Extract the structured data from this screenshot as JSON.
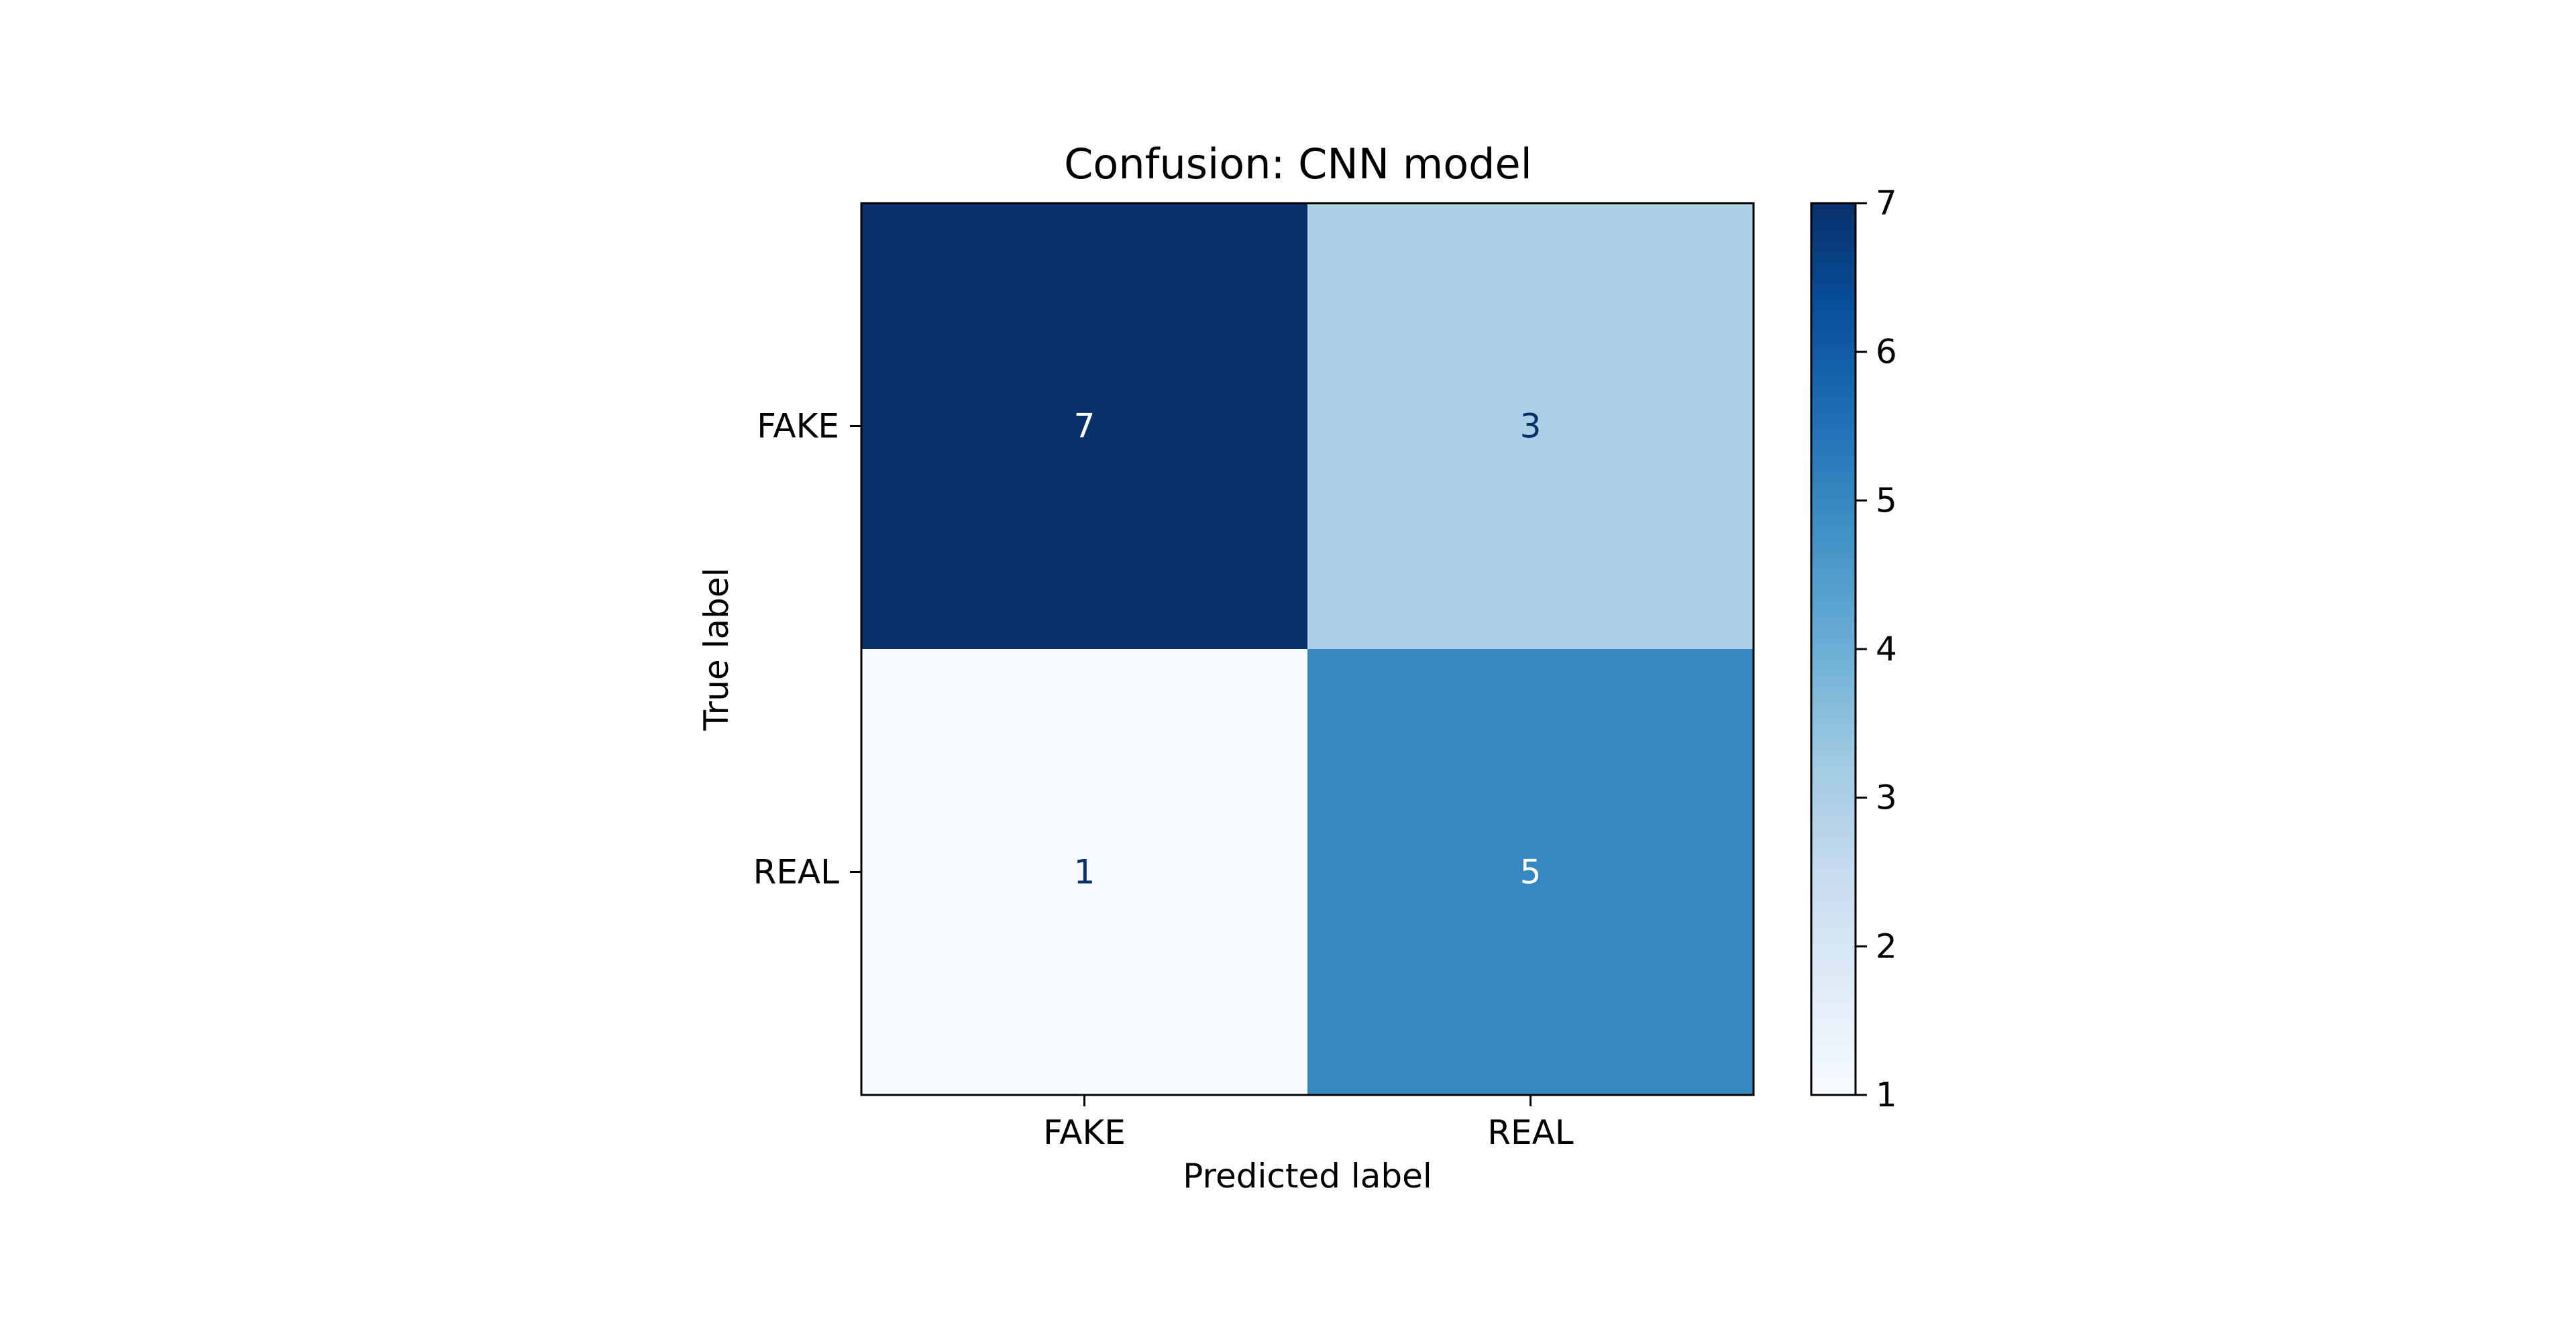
{
  "chart_data": {
    "type": "heatmap",
    "title": "Confusion: CNN model",
    "xlabel": "Predicted label",
    "ylabel": "True label",
    "x_categories": [
      "FAKE",
      "REAL"
    ],
    "y_categories": [
      "FAKE",
      "REAL"
    ],
    "values": [
      [
        7,
        3
      ],
      [
        1,
        5
      ]
    ],
    "colorbar": {
      "min": 1,
      "max": 7,
      "ticks": [
        1,
        2,
        3,
        4,
        5,
        6,
        7
      ],
      "colormap": "Blues",
      "low_color": "#f7fbff",
      "high_color": "#08306b"
    },
    "text_colors": {
      "on_dark": "#ffffff",
      "on_light": "#08306b"
    }
  }
}
